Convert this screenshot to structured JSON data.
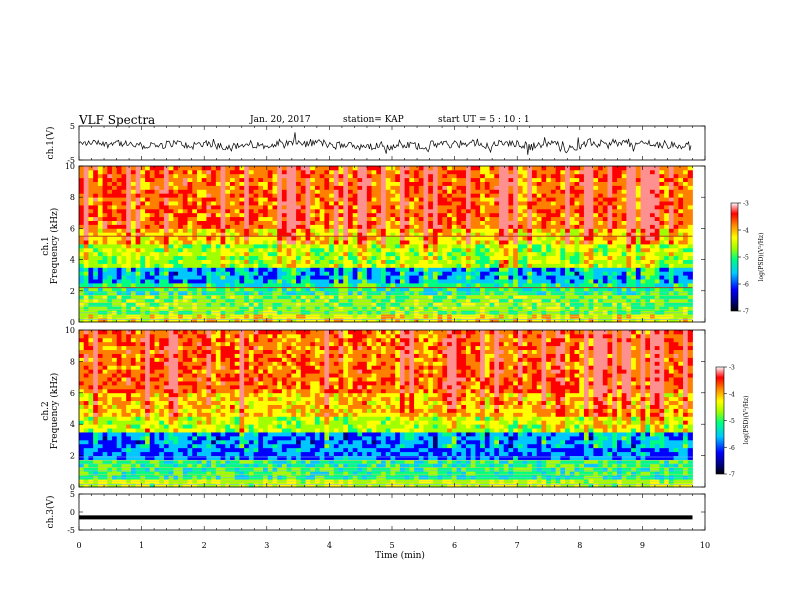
{
  "header": {
    "title": "VLF Spectra",
    "date": "Jan. 20, 2017",
    "station": "station= KAP",
    "start": "start  UT  =   5  : 10 : 1"
  },
  "colors": {
    "spectrum_scale": [
      "#00007a",
      "#0000ff",
      "#00c8ff",
      "#00ff80",
      "#a0ff00",
      "#ffff00",
      "#ff8000",
      "#ff0000",
      "#ff9090",
      "#ffffff"
    ],
    "trace": "#000000"
  },
  "chart_data": [
    {
      "type": "line",
      "name": "ch1-waveform",
      "ylabel": "ch.1(V)",
      "ylim": [
        -5,
        5
      ],
      "yticks": [
        "5",
        "-5"
      ],
      "xlim": [
        0,
        10
      ],
      "baseline_mean": -0.5,
      "amplitude_spread": 2.0
    },
    {
      "type": "heatmap",
      "name": "ch1-spectrogram",
      "ylabel": "ch.1\nFrequency  (kHz)",
      "ylim": [
        0,
        10
      ],
      "yticks": [
        "0",
        "2",
        "4",
        "6",
        "8",
        "10"
      ],
      "xlim": [
        0,
        9.8
      ],
      "colorbar": {
        "label": "log(PSD)(V²/Hz)",
        "range": [
          -7,
          -3
        ],
        "ticks": [
          "-3",
          "-4",
          "-5",
          "-6",
          "-7"
        ]
      },
      "bands": [
        {
          "from_khz": 0.0,
          "to_khz": 0.5,
          "level": -4.6
        },
        {
          "from_khz": 0.5,
          "to_khz": 1.8,
          "level": -5.1
        },
        {
          "from_khz": 1.8,
          "to_khz": 2.4,
          "level": -5.4
        },
        {
          "from_khz": 2.4,
          "to_khz": 3.6,
          "level": -6.0
        },
        {
          "from_khz": 3.6,
          "to_khz": 5.0,
          "level": -5.0
        },
        {
          "from_khz": 5.0,
          "to_khz": 6.0,
          "level": -4.5
        },
        {
          "from_khz": 6.0,
          "to_khz": 10.0,
          "level": -4.0
        }
      ],
      "horizontal_lines_khz": [
        5.5,
        2.2
      ]
    },
    {
      "type": "heatmap",
      "name": "ch2-spectrogram",
      "ylabel": "ch.2\nFrequency  (kHz)",
      "ylim": [
        0,
        10
      ],
      "yticks": [
        "0",
        "2",
        "4",
        "6",
        "8",
        "10"
      ],
      "xlim": [
        0,
        9.8
      ],
      "colorbar": {
        "label": "log(PSD)(V²/Hz)",
        "range": [
          -7,
          -3
        ],
        "ticks": [
          "-3",
          "-4",
          "-5",
          "-6",
          "-7"
        ]
      },
      "bands": [
        {
          "from_khz": 0.0,
          "to_khz": 0.6,
          "level": -4.8
        },
        {
          "from_khz": 0.6,
          "to_khz": 1.8,
          "level": -5.4
        },
        {
          "from_khz": 1.8,
          "to_khz": 3.4,
          "level": -6.1
        },
        {
          "from_khz": 3.4,
          "to_khz": 4.6,
          "level": -4.9
        },
        {
          "from_khz": 4.6,
          "to_khz": 6.0,
          "level": -4.4
        },
        {
          "from_khz": 6.0,
          "to_khz": 10.0,
          "level": -4.0
        }
      ],
      "horizontal_lines_khz": []
    },
    {
      "type": "line",
      "name": "ch3-waveform",
      "ylabel": "ch.3(V)",
      "ylim": [
        -5,
        5
      ],
      "yticks": [
        "5",
        "0",
        "-5"
      ],
      "xlim": [
        0,
        9.8
      ],
      "constant_value": -1.5,
      "xlabel": "Time  (min)",
      "xticks": [
        "0",
        "1",
        "2",
        "3",
        "4",
        "5",
        "6",
        "7",
        "8",
        "9",
        "10"
      ]
    }
  ]
}
